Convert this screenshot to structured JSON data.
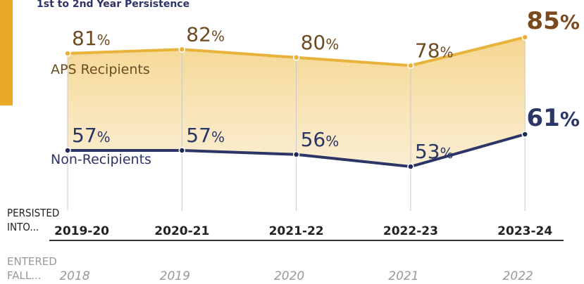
{
  "chart_data": {
    "type": "line",
    "title": "1st to 2nd Year Persistence",
    "categories": [
      "2019-20",
      "2020-21",
      "2021-22",
      "2022-23",
      "2023-24"
    ],
    "category_label": [
      "PERSISTED",
      "INTO..."
    ],
    "secondary_categories": [
      "2018",
      "2019",
      "2020",
      "2021",
      "2022"
    ],
    "secondary_label": [
      "ENTERED",
      "FALL..."
    ],
    "series": [
      {
        "name": "APS Recipients",
        "color": "#e8b33a",
        "label_color": "#6e4b1f",
        "final_color": "#7a4a1c",
        "values": [
          81,
          82,
          80,
          78,
          85
        ],
        "value_labels": [
          "81%",
          "82%",
          "80%",
          "78%",
          "85%"
        ]
      },
      {
        "name": "Non-Recipients",
        "color": "#2b3566",
        "label_color": "#2b3566",
        "final_color": "#2b3566",
        "values": [
          57,
          57,
          56,
          53,
          61
        ],
        "value_labels": [
          "57%",
          "57%",
          "56%",
          "53%",
          "61%"
        ]
      }
    ],
    "area_color": "#f5d68e",
    "grid": true
  }
}
